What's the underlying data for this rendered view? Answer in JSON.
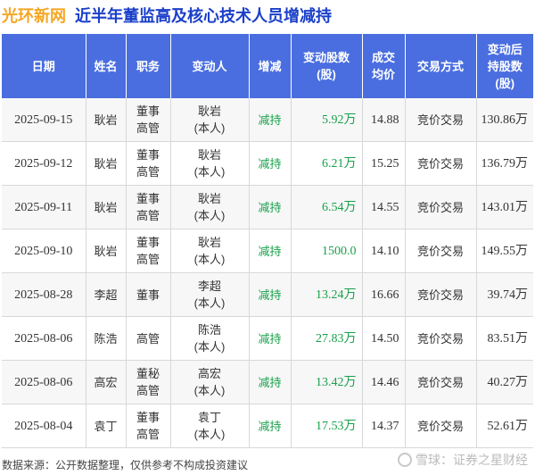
{
  "header": {
    "brand": "光环新网",
    "title": "近半年董监高及核心技术人员增减持"
  },
  "table": {
    "columns": [
      "日期",
      "姓名",
      "职务",
      "变动人",
      "增减",
      "变动股数\n(股)",
      "成交\n均价",
      "交易方式",
      "变动后\n持股数\n(股)"
    ],
    "rows": [
      {
        "date": "2025-09-15",
        "name": "耿岩",
        "role": "董事\n高管",
        "changer": "耿岩\n(本人)",
        "dir": "减持",
        "shares": "5.92万",
        "price": "14.88",
        "method": "竞价交易",
        "after": "130.86万"
      },
      {
        "date": "2025-09-12",
        "name": "耿岩",
        "role": "董事\n高管",
        "changer": "耿岩\n(本人)",
        "dir": "减持",
        "shares": "6.21万",
        "price": "15.25",
        "method": "竞价交易",
        "after": "136.79万"
      },
      {
        "date": "2025-09-11",
        "name": "耿岩",
        "role": "董事\n高管",
        "changer": "耿岩\n(本人)",
        "dir": "减持",
        "shares": "6.54万",
        "price": "14.55",
        "method": "竞价交易",
        "after": "143.01万"
      },
      {
        "date": "2025-09-10",
        "name": "耿岩",
        "role": "董事\n高管",
        "changer": "耿岩\n(本人)",
        "dir": "减持",
        "shares": "1500.0",
        "price": "14.10",
        "method": "竞价交易",
        "after": "149.55万"
      },
      {
        "date": "2025-08-28",
        "name": "李超",
        "role": "董事",
        "changer": "李超\n(本人)",
        "dir": "减持",
        "shares": "13.24万",
        "price": "16.66",
        "method": "竞价交易",
        "after": "39.74万"
      },
      {
        "date": "2025-08-06",
        "name": "陈浩",
        "role": "高管",
        "changer": "陈浩\n(本人)",
        "dir": "减持",
        "shares": "27.83万",
        "price": "14.50",
        "method": "竞价交易",
        "after": "83.51万"
      },
      {
        "date": "2025-08-06",
        "name": "高宏",
        "role": "董秘\n高管",
        "changer": "高宏\n(本人)",
        "dir": "减持",
        "shares": "13.42万",
        "price": "14.46",
        "method": "竞价交易",
        "after": "40.27万"
      },
      {
        "date": "2025-08-04",
        "name": "袁丁",
        "role": "董事\n高管",
        "changer": "袁丁\n(本人)",
        "dir": "减持",
        "shares": "17.53万",
        "price": "14.37",
        "method": "竞价交易",
        "after": "52.61万"
      }
    ]
  },
  "footer": {
    "source": "数据来源：公开数据整理，仅供参考不构成投资建议",
    "watermark": "雪球：证券之星财经"
  },
  "colors": {
    "header_bg": "#4a6ee0",
    "brand": "#f5a623",
    "title": "#1a3fc9",
    "decrease": "#18a04a"
  }
}
